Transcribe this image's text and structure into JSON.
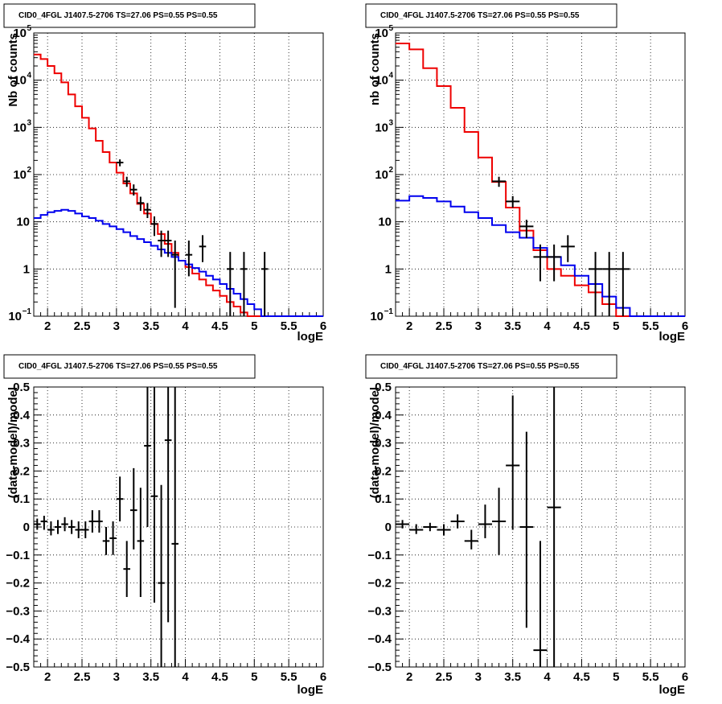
{
  "panels": [
    {
      "title": "CID0_4FGL J1407.5-2706 TS=27.06 PS=0.55 PS=0.55",
      "xlabel": "logE",
      "ylabel": "Nb of counts",
      "chart_data": {
        "type": "line",
        "yscale": "log",
        "xlim": [
          1.8,
          6.0
        ],
        "ylim": [
          0.1,
          100000
        ],
        "xticks": [
          "2",
          "2.5",
          "3",
          "3.5",
          "4",
          "4.5",
          "5",
          "5.5",
          "6"
        ],
        "xtick_values": [
          2,
          2.5,
          3,
          3.5,
          4,
          4.5,
          5,
          5.5,
          6
        ],
        "yticks": [
          {
            "value": 0.1,
            "base": "10",
            "exp": "−1"
          },
          {
            "value": 1,
            "label": "1"
          },
          {
            "value": 10,
            "label": "10"
          },
          {
            "value": 100,
            "base": "10",
            "exp": "2"
          },
          {
            "value": 1000,
            "base": "10",
            "exp": "3"
          },
          {
            "value": 10000,
            "base": "10",
            "exp": "4"
          },
          {
            "value": 100000,
            "base": "10",
            "exp": "5"
          }
        ],
        "grid": true,
        "series": [
          {
            "color": "#ee0000",
            "style": "step",
            "edges": [
              1.8,
              1.9,
              2.0,
              2.1,
              2.2,
              2.3,
              2.4,
              2.5,
              2.6,
              2.7,
              2.8,
              2.9,
              3.0,
              3.1,
              3.2,
              3.3,
              3.4,
              3.5,
              3.6,
              3.7,
              3.8,
              3.9,
              4.0,
              4.1,
              4.2,
              4.3,
              4.4,
              4.5,
              4.6,
              4.7,
              4.8,
              4.9,
              5.0,
              5.1,
              5.2,
              5.3,
              5.4,
              5.5,
              5.6,
              5.7,
              5.8,
              5.9,
              6.0
            ],
            "values": [
              35000,
              28000,
              20000,
              14000,
              9000,
              5000,
              2800,
              1600,
              950,
              520,
              300,
              180,
              110,
              65,
              40,
              24,
              15,
              9,
              5.5,
              3.4,
              2.2,
              1.5,
              1.1,
              0.8,
              0.6,
              0.45,
              0.35,
              0.27,
              0.2,
              0.16,
              0.12,
              0.1,
              0.1,
              0.1,
              0.1,
              0.1,
              0.1,
              0.1,
              0.1,
              0.1,
              0.1,
              0.1
            ]
          },
          {
            "color": "#0000ee",
            "style": "step",
            "edges": [
              1.8,
              1.9,
              2.0,
              2.1,
              2.2,
              2.3,
              2.4,
              2.5,
              2.6,
              2.7,
              2.8,
              2.9,
              3.0,
              3.1,
              3.2,
              3.3,
              3.4,
              3.5,
              3.6,
              3.7,
              3.8,
              3.9,
              4.0,
              4.1,
              4.2,
              4.3,
              4.4,
              4.5,
              4.6,
              4.7,
              4.8,
              4.9,
              5.0,
              5.1,
              5.2,
              5.3,
              5.4,
              5.5,
              5.6,
              5.7,
              5.8,
              5.9,
              6.0
            ],
            "values": [
              12,
              14,
              16,
              17,
              18,
              17,
              15,
              13,
              12,
              10.5,
              9,
              8,
              7,
              6,
              5,
              4.3,
              3.7,
              3.1,
              2.6,
              2.2,
              1.8,
              1.5,
              1.25,
              1.05,
              0.88,
              0.72,
              0.6,
              0.48,
              0.38,
              0.3,
              0.23,
              0.18,
              0.14,
              0.1,
              0.1,
              0.1,
              0.1,
              0.1,
              0.1,
              0.1,
              0.1,
              0.1
            ]
          }
        ],
        "points": [
          {
            "x": 3.05,
            "y": 180,
            "xerr": 0.05,
            "ylo": 150,
            "yhi": 210
          },
          {
            "x": 3.15,
            "y": 72,
            "xerr": 0.05,
            "ylo": 55,
            "yhi": 90
          },
          {
            "x": 3.25,
            "y": 48,
            "xerr": 0.05,
            "ylo": 36,
            "yhi": 62
          },
          {
            "x": 3.35,
            "y": 25,
            "xerr": 0.05,
            "ylo": 17,
            "yhi": 34
          },
          {
            "x": 3.45,
            "y": 18,
            "xerr": 0.05,
            "ylo": 12,
            "yhi": 25
          },
          {
            "x": 3.55,
            "y": 9,
            "xerr": 0.05,
            "ylo": 5,
            "yhi": 13
          },
          {
            "x": 3.65,
            "y": 4,
            "xerr": 0.05,
            "ylo": 1.8,
            "yhi": 6.5
          },
          {
            "x": 3.75,
            "y": 4,
            "xerr": 0.05,
            "ylo": 1.8,
            "yhi": 6.5
          },
          {
            "x": 3.85,
            "y": 2,
            "xerr": 0.05,
            "ylo": 0.15,
            "yhi": 4
          },
          {
            "x": 4.05,
            "y": 2,
            "xerr": 0.05,
            "ylo": 0.7,
            "yhi": 4
          },
          {
            "x": 4.25,
            "y": 3,
            "xerr": 0.05,
            "ylo": 1.4,
            "yhi": 5.2
          },
          {
            "x": 4.65,
            "y": 1,
            "xerr": 0.05,
            "ylo": 0.1,
            "yhi": 2.3
          },
          {
            "x": 4.85,
            "y": 1,
            "xerr": 0.05,
            "ylo": 0.1,
            "yhi": 2.3
          },
          {
            "x": 5.15,
            "y": 1,
            "xerr": 0.05,
            "ylo": 0.1,
            "yhi": 2.3
          }
        ]
      }
    },
    {
      "title": "CID0_4FGL J1407.5-2706 TS=27.06 PS=0.55 PS=0.55",
      "xlabel": "logE",
      "ylabel": "nb of counts",
      "chart_data": {
        "type": "line",
        "yscale": "log",
        "xlim": [
          1.8,
          6.0
        ],
        "ylim": [
          0.1,
          100000
        ],
        "xticks": [
          "2",
          "2.5",
          "3",
          "3.5",
          "4",
          "4.5",
          "5",
          "5.5",
          "6"
        ],
        "xtick_values": [
          2,
          2.5,
          3,
          3.5,
          4,
          4.5,
          5,
          5.5,
          6
        ],
        "yticks": [
          {
            "value": 0.1,
            "base": "10",
            "exp": "−1"
          },
          {
            "value": 1,
            "label": "1"
          },
          {
            "value": 10,
            "label": "10"
          },
          {
            "value": 100,
            "base": "10",
            "exp": "2"
          },
          {
            "value": 1000,
            "base": "10",
            "exp": "3"
          },
          {
            "value": 10000,
            "base": "10",
            "exp": "4"
          },
          {
            "value": 100000,
            "base": "10",
            "exp": "5"
          }
        ],
        "grid": true,
        "series": [
          {
            "color": "#ee0000",
            "style": "step",
            "edges": [
              1.8,
              2.0,
              2.2,
              2.4,
              2.6,
              2.8,
              3.0,
              3.2,
              3.4,
              3.6,
              3.8,
              4.0,
              4.2,
              4.4,
              4.6,
              4.8,
              5.0,
              5.2,
              5.4,
              5.6,
              5.8,
              6.0
            ],
            "values": [
              60000,
              45000,
              18000,
              7500,
              2600,
              800,
              230,
              70,
              20,
              6.5,
              2.5,
              1.0,
              0.72,
              0.45,
              0.32,
              0.18,
              0.1,
              0.1,
              0.1,
              0.1,
              0.1
            ]
          },
          {
            "color": "#0000ee",
            "style": "step",
            "edges": [
              1.8,
              2.0,
              2.2,
              2.4,
              2.6,
              2.8,
              3.0,
              3.2,
              3.4,
              3.6,
              3.8,
              4.0,
              4.2,
              4.4,
              4.6,
              4.8,
              5.0,
              5.2,
              5.4,
              5.6,
              5.8,
              6.0
            ],
            "values": [
              28,
              35,
              32,
              27,
              21,
              16,
              12,
              8.5,
              6,
              4.6,
              2.8,
              1.8,
              1.2,
              0.72,
              0.48,
              0.26,
              0.15,
              0.1,
              0.1,
              0.1,
              0.1
            ]
          }
        ],
        "points": [
          {
            "x": 3.3,
            "y": 72,
            "xerr": 0.1,
            "ylo": 55,
            "yhi": 90
          },
          {
            "x": 3.5,
            "y": 27,
            "xerr": 0.1,
            "ylo": 20,
            "yhi": 35
          },
          {
            "x": 3.7,
            "y": 8,
            "xerr": 0.1,
            "ylo": 4.5,
            "yhi": 11
          },
          {
            "x": 3.9,
            "y": 1.8,
            "xerr": 0.1,
            "ylo": 0.55,
            "yhi": 3.3
          },
          {
            "x": 4.1,
            "y": 1.8,
            "xerr": 0.1,
            "ylo": 0.55,
            "yhi": 3.3
          },
          {
            "x": 4.3,
            "y": 3,
            "xerr": 0.1,
            "ylo": 1.4,
            "yhi": 5.2
          },
          {
            "x": 4.7,
            "y": 1,
            "xerr": 0.1,
            "ylo": 0.1,
            "yhi": 2.3
          },
          {
            "x": 4.9,
            "y": 1,
            "xerr": 0.1,
            "ylo": 0.1,
            "yhi": 2.3
          },
          {
            "x": 5.1,
            "y": 1,
            "xerr": 0.1,
            "ylo": 0.1,
            "yhi": 2.3
          }
        ]
      }
    },
    {
      "title": "CID0_4FGL J1407.5-2706 TS=27.06 PS=0.55 PS=0.55",
      "xlabel": "logE",
      "ylabel": "(data-model)/model",
      "chart_data": {
        "type": "scatter",
        "yscale": "linear",
        "xlim": [
          1.8,
          6.0
        ],
        "ylim": [
          -0.5,
          0.5
        ],
        "xticks": [
          "2",
          "2.5",
          "3",
          "3.5",
          "4",
          "4.5",
          "5",
          "5.5",
          "6"
        ],
        "xtick_values": [
          2,
          2.5,
          3,
          3.5,
          4,
          4.5,
          5,
          5.5,
          6
        ],
        "yticks": [
          {
            "value": -0.5,
            "label": "−0.5"
          },
          {
            "value": -0.4,
            "label": "−0.4"
          },
          {
            "value": -0.3,
            "label": "−0.3"
          },
          {
            "value": -0.2,
            "label": "−0.2"
          },
          {
            "value": -0.1,
            "label": "−0.1"
          },
          {
            "value": 0,
            "label": "0"
          },
          {
            "value": 0.1,
            "label": "0.1"
          },
          {
            "value": 0.2,
            "label": "0.2"
          },
          {
            "value": 0.3,
            "label": "0.3"
          },
          {
            "value": 0.4,
            "label": "0.4"
          },
          {
            "value": 0.5,
            "label": "0.5"
          }
        ],
        "grid": true,
        "series": [],
        "points": [
          {
            "x": 1.85,
            "y": 0.01,
            "xerr": 0.05,
            "ylo": -0.01,
            "yhi": 0.03
          },
          {
            "x": 1.95,
            "y": 0.02,
            "xerr": 0.05,
            "ylo": -0.01,
            "yhi": 0.04
          },
          {
            "x": 2.05,
            "y": -0.01,
            "xerr": 0.05,
            "ylo": -0.03,
            "yhi": 0.02
          },
          {
            "x": 2.15,
            "y": 0.0,
            "xerr": 0.05,
            "ylo": -0.025,
            "yhi": 0.025
          },
          {
            "x": 2.25,
            "y": 0.01,
            "xerr": 0.05,
            "ylo": -0.015,
            "yhi": 0.035
          },
          {
            "x": 2.35,
            "y": 0.0,
            "xerr": 0.05,
            "ylo": -0.025,
            "yhi": 0.025
          },
          {
            "x": 2.45,
            "y": -0.01,
            "xerr": 0.05,
            "ylo": -0.04,
            "yhi": 0.02
          },
          {
            "x": 2.55,
            "y": -0.01,
            "xerr": 0.05,
            "ylo": -0.04,
            "yhi": 0.02
          },
          {
            "x": 2.65,
            "y": 0.02,
            "xerr": 0.05,
            "ylo": -0.02,
            "yhi": 0.06
          },
          {
            "x": 2.75,
            "y": 0.02,
            "xerr": 0.05,
            "ylo": -0.02,
            "yhi": 0.06
          },
          {
            "x": 2.85,
            "y": -0.05,
            "xerr": 0.05,
            "ylo": -0.1,
            "yhi": 0.0
          },
          {
            "x": 2.95,
            "y": -0.04,
            "xerr": 0.05,
            "ylo": -0.1,
            "yhi": 0.02
          },
          {
            "x": 3.05,
            "y": 0.1,
            "xerr": 0.05,
            "ylo": 0.02,
            "yhi": 0.18
          },
          {
            "x": 3.15,
            "y": -0.15,
            "xerr": 0.05,
            "ylo": -0.25,
            "yhi": -0.05
          },
          {
            "x": 3.25,
            "y": 0.06,
            "xerr": 0.05,
            "ylo": -0.08,
            "yhi": 0.21
          },
          {
            "x": 3.35,
            "y": -0.05,
            "xerr": 0.05,
            "ylo": -0.25,
            "yhi": 0.14
          },
          {
            "x": 3.45,
            "y": 0.29,
            "xerr": 0.05,
            "ylo": 0.0,
            "yhi": 0.5
          },
          {
            "x": 3.55,
            "y": 0.11,
            "xerr": 0.05,
            "ylo": -0.27,
            "yhi": 0.5
          },
          {
            "x": 3.65,
            "y": -0.2,
            "xerr": 0.05,
            "ylo": -0.5,
            "yhi": 0.15
          },
          {
            "x": 3.75,
            "y": 0.31,
            "xerr": 0.05,
            "ylo": -0.34,
            "yhi": 0.5
          },
          {
            "x": 3.85,
            "y": -0.06,
            "xerr": 0.05,
            "ylo": -0.5,
            "yhi": 0.5
          }
        ]
      }
    },
    {
      "title": "CID0_4FGL J1407.5-2706 TS=27.06 PS=0.55 PS=0.55",
      "xlabel": "logE",
      "ylabel": "(data-model)/model",
      "chart_data": {
        "type": "scatter",
        "yscale": "linear",
        "xlim": [
          1.8,
          6.0
        ],
        "ylim": [
          -0.5,
          0.5
        ],
        "xticks": [
          "2",
          "2.5",
          "3",
          "3.5",
          "4",
          "4.5",
          "5",
          "5.5",
          "6"
        ],
        "xtick_values": [
          2,
          2.5,
          3,
          3.5,
          4,
          4.5,
          5,
          5.5,
          6
        ],
        "yticks": [
          {
            "value": -0.5,
            "label": "−0.5"
          },
          {
            "value": -0.4,
            "label": "−0.4"
          },
          {
            "value": -0.3,
            "label": "−0.3"
          },
          {
            "value": -0.2,
            "label": "−0.2"
          },
          {
            "value": -0.1,
            "label": "−0.1"
          },
          {
            "value": 0,
            "label": "0"
          },
          {
            "value": 0.1,
            "label": "0.1"
          },
          {
            "value": 0.2,
            "label": "0.2"
          },
          {
            "value": 0.3,
            "label": "0.3"
          },
          {
            "value": 0.4,
            "label": "0.4"
          },
          {
            "value": 0.5,
            "label": "0.5"
          }
        ],
        "grid": true,
        "series": [],
        "points": [
          {
            "x": 1.9,
            "y": 0.01,
            "xerr": 0.1,
            "ylo": -0.005,
            "yhi": 0.025
          },
          {
            "x": 2.1,
            "y": -0.01,
            "xerr": 0.1,
            "ylo": -0.025,
            "yhi": 0.01
          },
          {
            "x": 2.3,
            "y": 0.0,
            "xerr": 0.1,
            "ylo": -0.015,
            "yhi": 0.015
          },
          {
            "x": 2.5,
            "y": -0.01,
            "xerr": 0.1,
            "ylo": -0.03,
            "yhi": 0.01
          },
          {
            "x": 2.7,
            "y": 0.02,
            "xerr": 0.1,
            "ylo": -0.005,
            "yhi": 0.045
          },
          {
            "x": 2.9,
            "y": -0.05,
            "xerr": 0.1,
            "ylo": -0.08,
            "yhi": -0.01
          },
          {
            "x": 3.1,
            "y": 0.01,
            "xerr": 0.1,
            "ylo": -0.04,
            "yhi": 0.08
          },
          {
            "x": 3.3,
            "y": 0.02,
            "xerr": 0.1,
            "ylo": -0.1,
            "yhi": 0.14
          },
          {
            "x": 3.5,
            "y": 0.22,
            "xerr": 0.1,
            "ylo": -0.01,
            "yhi": 0.47
          },
          {
            "x": 3.7,
            "y": 0.0,
            "xerr": 0.1,
            "ylo": -0.36,
            "yhi": 0.34
          },
          {
            "x": 3.9,
            "y": -0.44,
            "xerr": 0.1,
            "ylo": -0.5,
            "yhi": -0.05
          },
          {
            "x": 4.1,
            "y": 0.07,
            "xerr": 0.1,
            "ylo": -0.5,
            "yhi": 0.5
          }
        ]
      }
    }
  ]
}
